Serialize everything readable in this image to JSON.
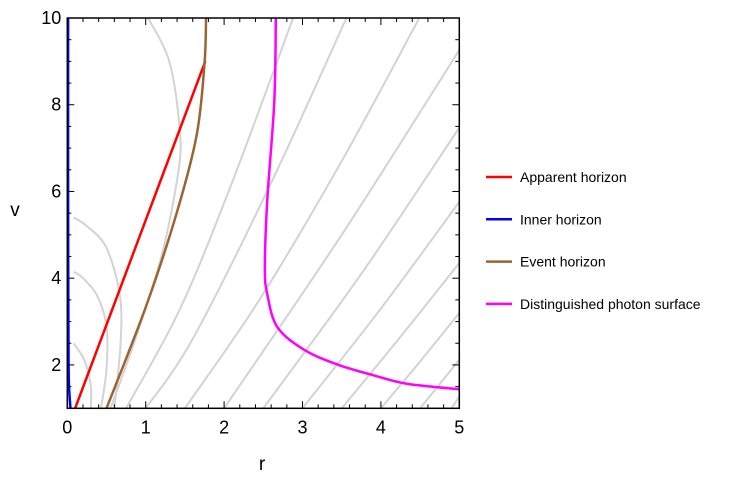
{
  "chart_data": {
    "type": "line",
    "title": "",
    "xlabel": "r",
    "ylabel": "v",
    "xlim": [
      0,
      5
    ],
    "ylim": [
      1,
      10
    ],
    "xticks": [
      0,
      1,
      2,
      3,
      4,
      5
    ],
    "yticks": [
      2,
      4,
      6,
      8,
      10
    ],
    "grid": false,
    "legend_placement": "right",
    "series": [
      {
        "name": "Apparent horizon",
        "color": "#ff0000",
        "points": [
          [
            0.1,
            1
          ],
          [
            1.76,
            9.0
          ]
        ]
      },
      {
        "name": "Inner horizon",
        "color": "#0000ff",
        "points": [
          [
            0.04,
            1
          ],
          [
            0.02,
            1.6
          ],
          [
            0.015,
            2.5
          ],
          [
            0.012,
            4
          ],
          [
            0.01,
            6
          ],
          [
            0.01,
            8
          ],
          [
            0.01,
            10
          ]
        ]
      },
      {
        "name": "Event horizon",
        "color": "#996633",
        "points": [
          [
            0.5,
            1
          ],
          [
            1.0,
            3.33
          ],
          [
            1.39,
            5.47
          ],
          [
            1.65,
            7.3
          ],
          [
            1.75,
            8.95
          ],
          [
            1.77,
            10
          ]
        ]
      },
      {
        "name": "Distinguished photon surface",
        "color": "#ff00ff",
        "points": [
          [
            2.66,
            10
          ],
          [
            2.64,
            8.07
          ],
          [
            2.55,
            5.78
          ],
          [
            2.52,
            4.25
          ],
          [
            2.55,
            3.64
          ],
          [
            2.68,
            2.87
          ],
          [
            3.03,
            2.34
          ],
          [
            3.46,
            2.0
          ],
          [
            3.89,
            1.77
          ],
          [
            4.32,
            1.57
          ],
          [
            5.0,
            1.44
          ]
        ]
      }
    ],
    "background_curves": {
      "color": "#d3d3d3",
      "curves": [
        [
          [
            0.75,
            1
          ],
          [
            1.44,
            3.3
          ],
          [
            2.1,
            6.2
          ],
          [
            2.88,
            10
          ]
        ],
        [
          [
            1.0,
            1
          ],
          [
            1.6,
            2.6
          ],
          [
            2.6,
            6.2
          ],
          [
            3.56,
            10
          ]
        ],
        [
          [
            1.5,
            1
          ],
          [
            2.45,
            3.5
          ],
          [
            3.5,
            6.7
          ],
          [
            4.49,
            10
          ]
        ],
        [
          [
            2.0,
            1
          ],
          [
            3.5,
            5.0
          ],
          [
            5.0,
            9.26
          ]
        ],
        [
          [
            2.5,
            1
          ],
          [
            3.75,
            4.1
          ],
          [
            5.0,
            7.47
          ]
        ],
        [
          [
            3.0,
            1
          ],
          [
            4.0,
            3.3
          ],
          [
            5.0,
            5.76
          ]
        ],
        [
          [
            3.5,
            1
          ],
          [
            4.25,
            2.65
          ],
          [
            5.0,
            4.35
          ]
        ],
        [
          [
            4.0,
            1
          ],
          [
            4.5,
            2.08
          ],
          [
            5.0,
            3.2
          ]
        ],
        [
          [
            4.5,
            1
          ],
          [
            5.0,
            2.12
          ]
        ],
        [
          [
            4.9,
            1
          ],
          [
            5.0,
            1.27
          ]
        ],
        [
          [
            0.55,
            1
          ],
          [
            0.85,
            2.5
          ],
          [
            1.2,
            4.5
          ],
          [
            1.42,
            6.5
          ],
          [
            1.43,
            7.5
          ],
          [
            1.3,
            9
          ],
          [
            1.03,
            10
          ]
        ],
        [
          [
            0.6,
            1
          ],
          [
            0.68,
            2.5
          ],
          [
            0.67,
            3.6
          ],
          [
            0.5,
            4.7
          ],
          [
            0.25,
            5.2
          ],
          [
            0.08,
            5.4
          ]
        ],
        [
          [
            0.43,
            1
          ],
          [
            0.5,
            1.9
          ],
          [
            0.5,
            2.9
          ],
          [
            0.38,
            3.6
          ],
          [
            0.2,
            4.0
          ],
          [
            0.08,
            4.15
          ]
        ],
        [
          [
            0.3,
            1
          ],
          [
            0.3,
            1.5
          ],
          [
            0.22,
            2.1
          ],
          [
            0.08,
            2.5
          ]
        ]
      ]
    }
  }
}
